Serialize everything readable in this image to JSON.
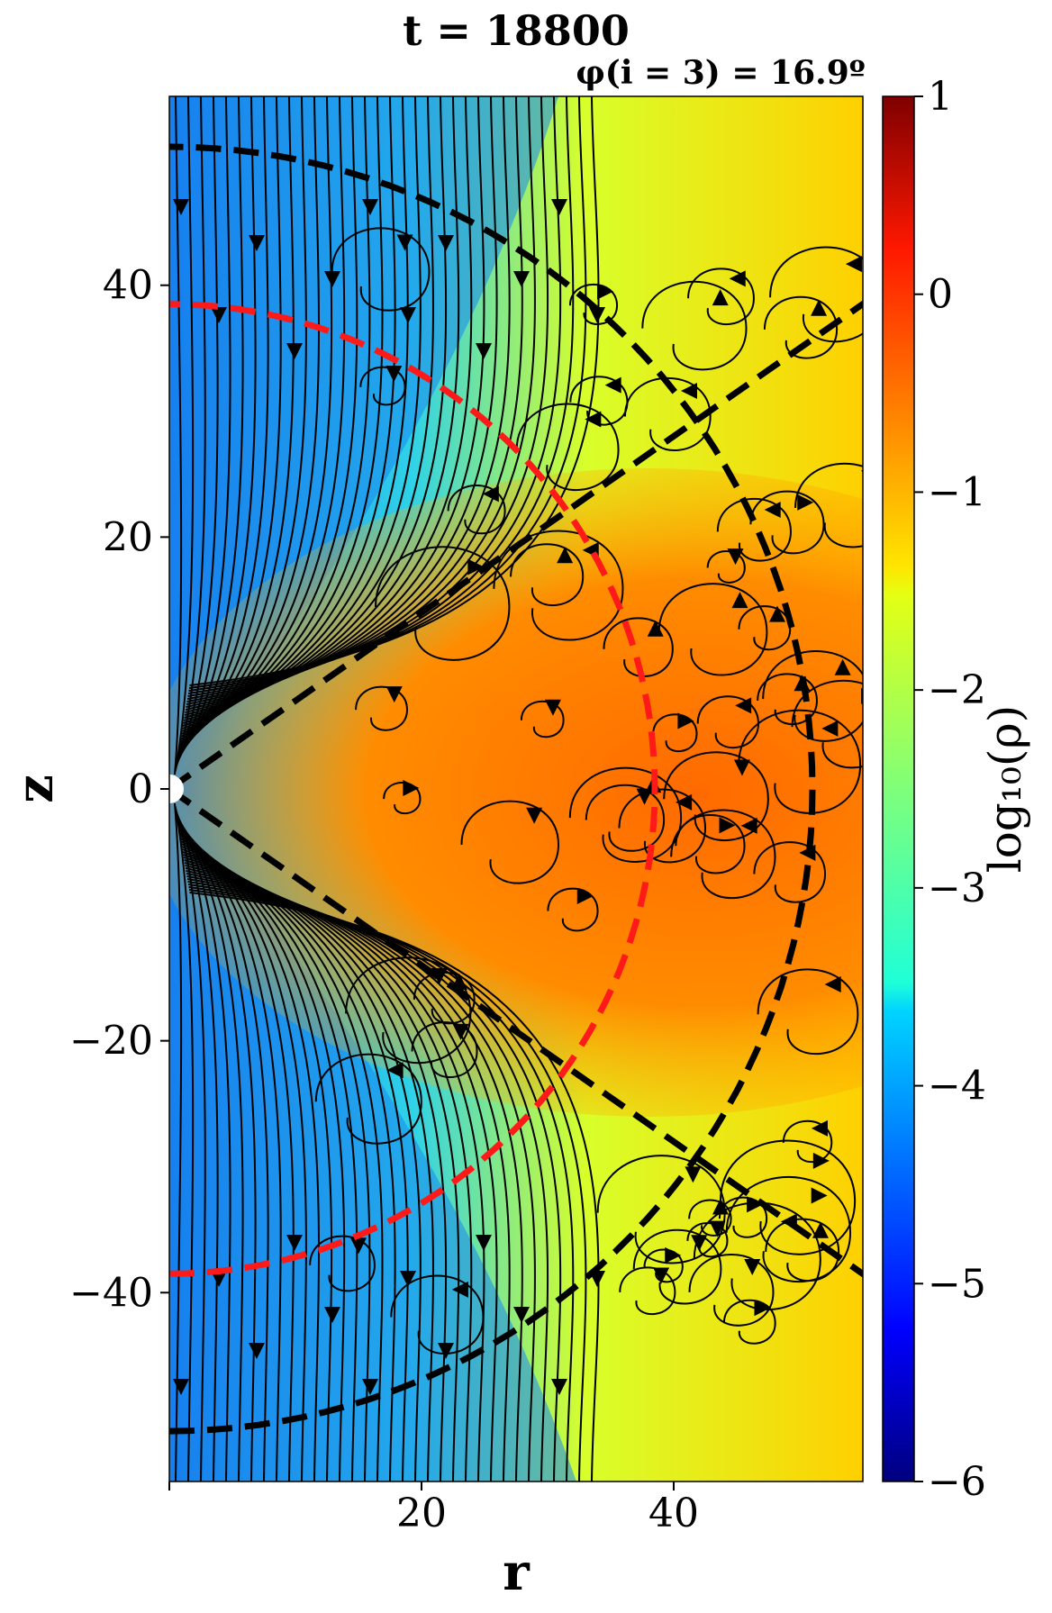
{
  "chart_data": {
    "type": "heatmap",
    "title": "t = 18800",
    "subtitle": "φ(i = 3) = 16.9º",
    "xlabel": "r",
    "ylabel": "z",
    "xlim": [
      0,
      55
    ],
    "ylim": [
      -55,
      55
    ],
    "x_ticks": [
      20,
      40
    ],
    "y_ticks": [
      -40,
      -20,
      0,
      20,
      40
    ],
    "x_tick_labels": [
      "20",
      "40"
    ],
    "y_tick_labels": [
      "−40",
      "−20",
      "0",
      "20",
      "40"
    ],
    "colorbar": {
      "label": "log₁₀(ρ)",
      "range": [
        -6,
        1
      ],
      "ticks": [
        1,
        0,
        -1,
        -2,
        -3,
        -4,
        -5,
        -6
      ],
      "tick_labels": [
        "1",
        "0",
        "−1",
        "−2",
        "−3",
        "−4",
        "−5",
        "−6"
      ],
      "colormap": "jet"
    },
    "overlays": {
      "red_dashed_radius": 38.5,
      "black_dashed_radius": 51,
      "black_dashed_line_angle_deg": 35,
      "streamlines_color": "#000000"
    }
  }
}
